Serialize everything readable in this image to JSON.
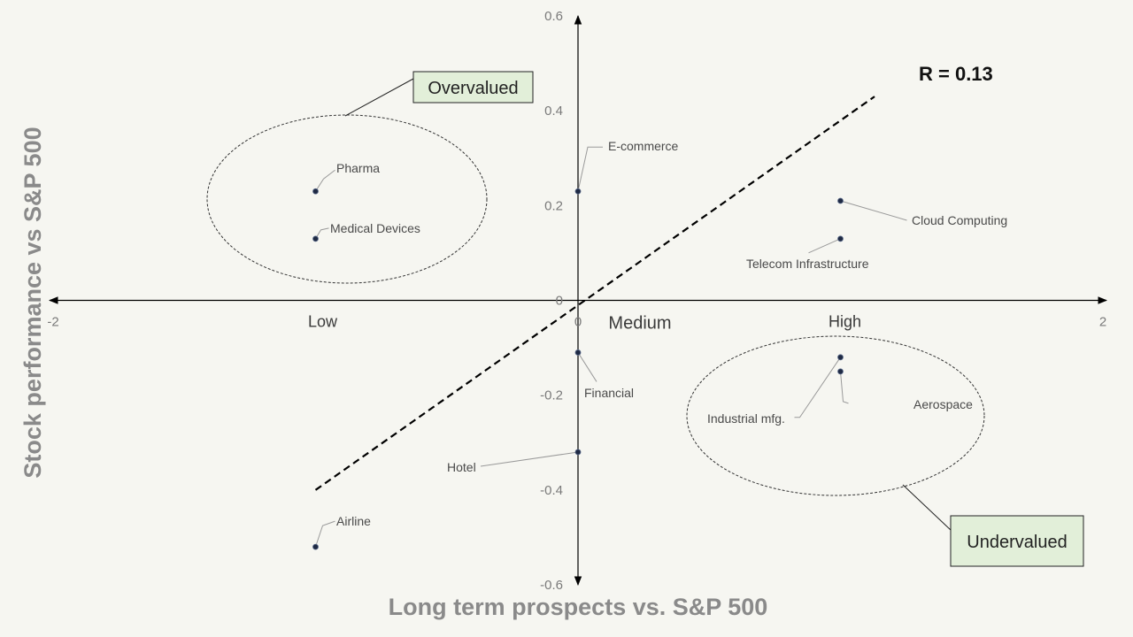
{
  "chart_data": {
    "type": "scatter",
    "xlabel": "Long term prospects vs. S&P 500",
    "ylabel": "Stock performance vs S&P 500",
    "xlim": [
      -2,
      2
    ],
    "ylim": [
      -0.6,
      0.6
    ],
    "x_ticks": [
      "-2",
      "0",
      "2"
    ],
    "y_ticks": [
      "0.6",
      "0.4",
      "0.2",
      "0",
      "-0.2",
      "-0.4",
      "-0.6"
    ],
    "x_categories": [
      {
        "label": "Low",
        "x": -1
      },
      {
        "label": "Medium",
        "x": 0
      },
      {
        "label": "High",
        "x": 1
      }
    ],
    "points": [
      {
        "label": "Pharma",
        "x": -1,
        "y": 0.23
      },
      {
        "label": "Medical Devices",
        "x": -1,
        "y": 0.13
      },
      {
        "label": "E-commerce",
        "x": 0,
        "y": 0.23
      },
      {
        "label": "Cloud Computing",
        "x": 1,
        "y": 0.21
      },
      {
        "label": "Telecom Infrastructure",
        "x": 1,
        "y": 0.13
      },
      {
        "label": "Financial",
        "x": 0,
        "y": -0.11
      },
      {
        "label": "Industrial mfg.",
        "x": 1,
        "y": -0.12
      },
      {
        "label": "Aerospace",
        "x": 1,
        "y": -0.15
      },
      {
        "label": "Hotel",
        "x": 0,
        "y": -0.32
      },
      {
        "label": "Airline",
        "x": -1,
        "y": -0.52
      }
    ],
    "trendline": {
      "from": [
        -1,
        -0.4
      ],
      "to": [
        1.13,
        0.43
      ],
      "style": "dashed"
    },
    "annotations": {
      "r_value": "R = 0.13",
      "overvalued": "Overvalued",
      "undervalued": "Undervalued"
    },
    "legend": "none",
    "grid": false
  },
  "colors": {
    "background": "#f6f6f1",
    "point": "#1f2a44",
    "callout_fill": "#e2efd9",
    "axis": "#000000"
  }
}
